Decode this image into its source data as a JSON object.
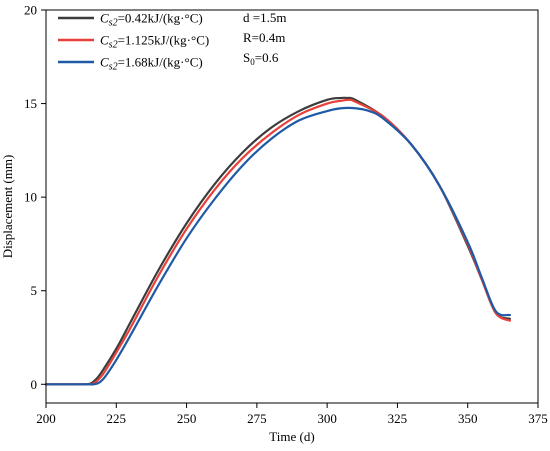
{
  "chart_data": {
    "type": "line",
    "xlabel": "Time (d)",
    "ylabel": "Displacement (mm)",
    "xlim": [
      200,
      375
    ],
    "ylim": [
      -1,
      20
    ],
    "xticks": [
      200,
      225,
      250,
      275,
      300,
      325,
      350,
      375
    ],
    "yticks": [
      0,
      5,
      10,
      15,
      20
    ],
    "legend_position": "top-left",
    "series": [
      {
        "name": "C_s2=0.42kJ/(kg·°C)",
        "legend_symbol": "C",
        "legend_subscript": "s2",
        "legend_rest": "=0.42kJ/(kg·°C)",
        "color": "#3c3c3c",
        "x": [
          200,
          205,
          210,
          214,
          216,
          218,
          220,
          225,
          230,
          240,
          250,
          260,
          270,
          280,
          290,
          300,
          305,
          307,
          310,
          320,
          330,
          340,
          350,
          355,
          360,
          365
        ],
        "y": [
          0,
          0,
          0,
          0,
          0.05,
          0.3,
          0.7,
          1.9,
          3.3,
          6.1,
          8.6,
          10.7,
          12.4,
          13.7,
          14.6,
          15.2,
          15.3,
          15.3,
          15.2,
          14.3,
          12.8,
          10.6,
          7.4,
          5.6,
          3.8,
          3.5
        ]
      },
      {
        "name": "C_s2=1.125kJ/(kg·°C)",
        "legend_symbol": "C",
        "legend_subscript": "s2",
        "legend_rest": "=1.125kJ/(kg·°C)",
        "color": "#e8403a",
        "x": [
          200,
          205,
          210,
          215,
          217,
          219,
          221,
          225,
          230,
          240,
          250,
          260,
          270,
          280,
          290,
          300,
          305,
          308,
          310,
          320,
          330,
          340,
          350,
          355,
          360,
          365
        ],
        "y": [
          0,
          0,
          0,
          0,
          0.05,
          0.3,
          0.7,
          1.7,
          3.0,
          5.8,
          8.3,
          10.4,
          12.1,
          13.4,
          14.4,
          15.0,
          15.15,
          15.2,
          15.1,
          14.3,
          12.8,
          10.6,
          7.5,
          5.6,
          3.8,
          3.4
        ]
      },
      {
        "name": "C_s2=1.68kJ/(kg·°C)",
        "legend_symbol": "C",
        "legend_subscript": "s2",
        "legend_rest": "=1.68kJ/(kg·°C)",
        "color": "#1f5aa6",
        "x": [
          200,
          205,
          210,
          215,
          217,
          219,
          221,
          225,
          230,
          240,
          250,
          260,
          270,
          280,
          290,
          300,
          305,
          310,
          315,
          320,
          330,
          340,
          350,
          355,
          360,
          365
        ],
        "y": [
          0,
          0,
          0,
          0,
          0,
          0.1,
          0.4,
          1.3,
          2.6,
          5.3,
          7.8,
          9.9,
          11.7,
          13.1,
          14.1,
          14.6,
          14.75,
          14.75,
          14.6,
          14.2,
          12.8,
          10.6,
          7.6,
          5.7,
          3.9,
          3.7
        ]
      }
    ],
    "annotations": [
      {
        "main": "d =1.5m",
        "sub": "",
        "tail": ""
      },
      {
        "main": "R=0.4m",
        "sub": "",
        "tail": ""
      },
      {
        "main": "S",
        "sub": "0",
        "tail": "=0.6"
      }
    ]
  }
}
